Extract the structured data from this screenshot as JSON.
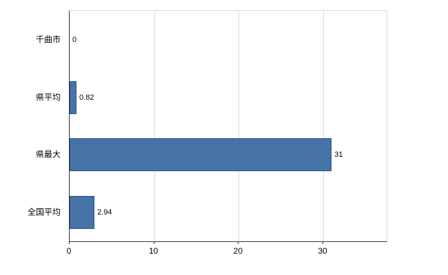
{
  "chart_data": {
    "type": "bar",
    "orientation": "horizontal",
    "title": "",
    "xlabel": "",
    "ylabel": "",
    "categories": [
      "千曲市",
      "県平均",
      "県最大",
      "全国平均"
    ],
    "values": [
      0,
      0.82,
      31,
      2.94
    ],
    "value_labels": [
      "0",
      "0.82",
      "31",
      "2.94"
    ],
    "x_ticks": [
      0,
      10,
      20,
      30
    ],
    "x_tick_labels": [
      "0",
      "10",
      "20",
      "30"
    ],
    "xlim": [
      0,
      37.5
    ],
    "grid": true,
    "legend": "none",
    "bar_color": "#4573a7",
    "bar_border_color": "#2c5485",
    "grid_color": "#d9d9d9",
    "axis_color": "#333333",
    "background_color": "#ffffff"
  }
}
